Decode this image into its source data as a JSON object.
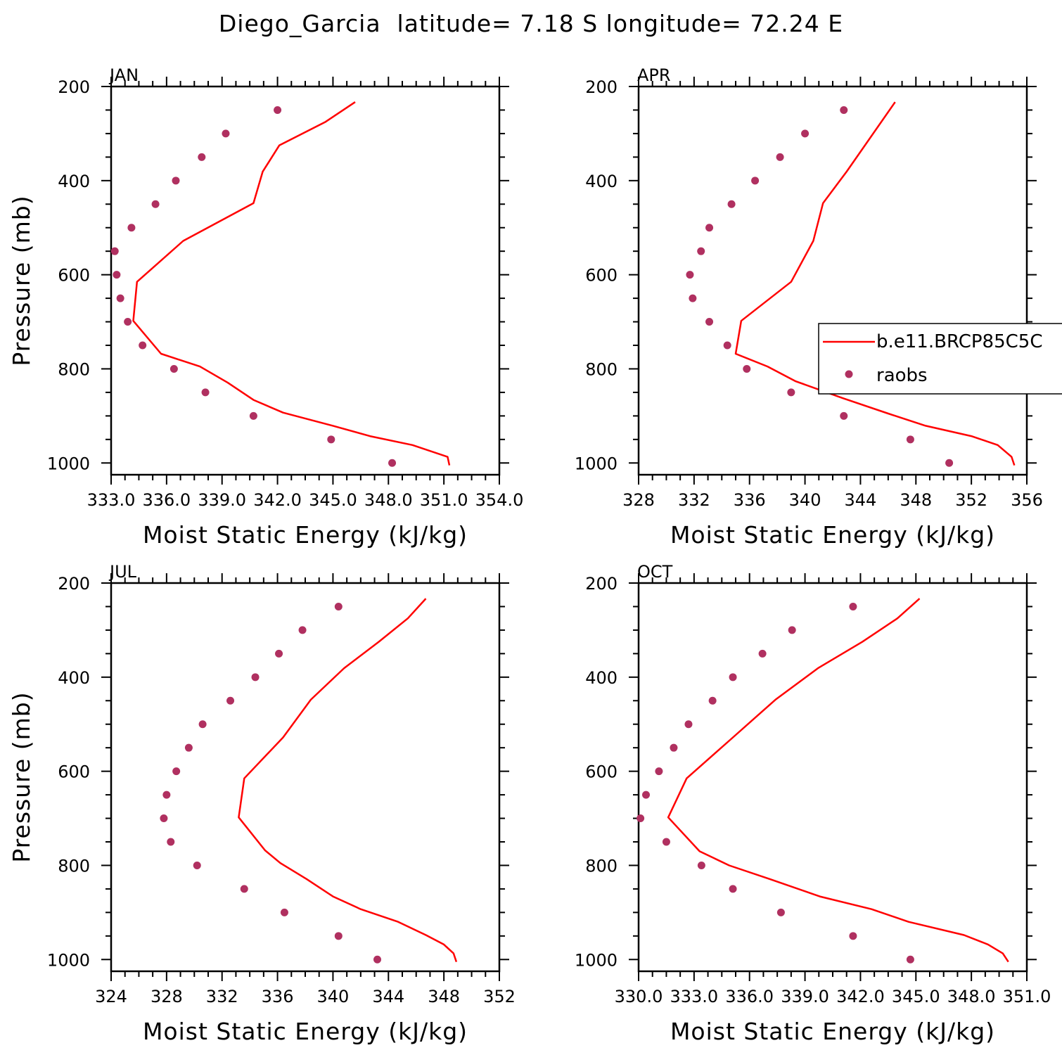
{
  "title": "Diego_Garcia  latitude= 7.18 S longitude= 72.24 E",
  "colors": {
    "model": "#ff0000",
    "raobs": "#b03060",
    "axis": "#000000"
  },
  "legend": {
    "placement": "right-middle of APR panel",
    "entries": [
      "b.e11.BRCP85C5C",
      "raobs"
    ]
  },
  "chart_data": [
    {
      "type": "line",
      "panel_label": "JAN",
      "xlabel": "Moist Static Energy (kJ/kg)",
      "ylabel": "Pressure (mb)",
      "xlim": [
        333.0,
        354.0
      ],
      "xticks": [
        333,
        336,
        339,
        342,
        345,
        348,
        351,
        354
      ],
      "xtick_labels": [
        "333.0",
        "336.0",
        "339.0",
        "342.0",
        "345.0",
        "348.0",
        "351.0",
        "354.0"
      ],
      "ylim": [
        1025,
        200
      ],
      "yticks": [
        200,
        400,
        600,
        800,
        1000
      ],
      "series": [
        {
          "name": "b.e11.BRCP85C5C",
          "kind": "line",
          "x": [
            351.3,
            351.2,
            349.3,
            347.0,
            345.0,
            342.3,
            340.7,
            339.3,
            337.8,
            335.7,
            334.2,
            334.4,
            336.9,
            340.7,
            341.2,
            342.1,
            344.6,
            346.2
          ],
          "y": [
            1005,
            987,
            962,
            943,
            921,
            893,
            866,
            829,
            795,
            768,
            698,
            615,
            528,
            448,
            381,
            325,
            275,
            233
          ]
        },
        {
          "name": "raobs",
          "kind": "points",
          "x": [
            348.2,
            344.9,
            340.7,
            338.1,
            336.4,
            334.7,
            333.9,
            333.5,
            333.3,
            333.2,
            334.1,
            335.4,
            336.5,
            337.9,
            339.2,
            342.0
          ],
          "y": [
            1000,
            950,
            900,
            850,
            800,
            750,
            700,
            650,
            600,
            550,
            500,
            450,
            400,
            350,
            300,
            250
          ]
        }
      ]
    },
    {
      "type": "line",
      "panel_label": "APR",
      "xlabel": "Moist Static Energy (kJ/kg)",
      "ylabel": "",
      "xlim": [
        328,
        356
      ],
      "xticks": [
        328,
        332,
        336,
        340,
        344,
        348,
        352,
        356
      ],
      "xtick_labels": [
        "328",
        "332",
        "336",
        "340",
        "344",
        "348",
        "352",
        "356"
      ],
      "ylim": [
        1025,
        200
      ],
      "yticks": [
        200,
        400,
        600,
        800,
        1000
      ],
      "series": [
        {
          "name": "b.e11.BRCP85C5C",
          "kind": "line",
          "x": [
            355.1,
            354.9,
            353.9,
            352.0,
            348.7,
            346.0,
            342.7,
            339.3,
            337.3,
            335.0,
            335.4,
            339.0,
            340.6,
            341.3,
            343.0,
            346.5
          ],
          "y": [
            1005,
            987,
            962,
            943,
            921,
            895,
            862,
            826,
            795,
            768,
            698,
            615,
            528,
            448,
            381,
            233
          ]
        },
        {
          "name": "raobs",
          "kind": "points",
          "x": [
            350.4,
            347.6,
            342.8,
            339.0,
            335.8,
            334.4,
            333.1,
            331.9,
            331.7,
            332.5,
            333.1,
            334.7,
            336.4,
            338.2,
            340.0,
            342.8
          ],
          "y": [
            1000,
            950,
            900,
            850,
            800,
            750,
            700,
            650,
            600,
            550,
            500,
            450,
            400,
            350,
            300,
            250
          ]
        }
      ]
    },
    {
      "type": "line",
      "panel_label": "JUL",
      "xlabel": "Moist Static Energy (kJ/kg)",
      "ylabel": "Pressure (mb)",
      "xlim": [
        324,
        352
      ],
      "xticks": [
        324,
        328,
        332,
        336,
        340,
        344,
        348,
        352
      ],
      "xtick_labels": [
        "324",
        "328",
        "332",
        "336",
        "340",
        "344",
        "348",
        "352"
      ],
      "ylim": [
        1025,
        200
      ],
      "yticks": [
        200,
        400,
        600,
        800,
        1000
      ],
      "series": [
        {
          "name": "b.e11.BRCP85C5C",
          "kind": "line",
          "x": [
            348.9,
            348.7,
            348.0,
            346.7,
            344.7,
            342.0,
            340.0,
            338.1,
            336.2,
            335.1,
            333.2,
            333.6,
            336.4,
            338.4,
            340.8,
            343.3,
            345.4,
            346.7
          ],
          "y": [
            1005,
            987,
            968,
            948,
            920,
            893,
            866,
            829,
            795,
            768,
            698,
            615,
            528,
            448,
            381,
            325,
            275,
            233
          ]
        },
        {
          "name": "raobs",
          "kind": "points",
          "x": [
            343.2,
            340.4,
            336.5,
            333.6,
            330.2,
            328.3,
            327.8,
            328.0,
            328.7,
            329.6,
            330.6,
            332.6,
            334.4,
            336.1,
            337.8,
            340.4
          ],
          "y": [
            1000,
            950,
            900,
            850,
            800,
            750,
            700,
            650,
            600,
            550,
            500,
            450,
            400,
            350,
            300,
            250
          ]
        }
      ]
    },
    {
      "type": "line",
      "panel_label": "OCT",
      "xlabel": "Moist Static Energy (kJ/kg)",
      "ylabel": "",
      "xlim": [
        330.0,
        351.0
      ],
      "xticks": [
        330,
        333,
        336,
        339,
        342,
        345,
        348,
        351
      ],
      "xtick_labels": [
        "330.0",
        "333.0",
        "336.0",
        "339.0",
        "342.0",
        "345.0",
        "348.0",
        "351.0"
      ],
      "ylim": [
        1025,
        200
      ],
      "yticks": [
        200,
        400,
        600,
        800,
        1000
      ],
      "series": [
        {
          "name": "b.e11.BRCP85C5C",
          "kind": "line",
          "x": [
            350.0,
            349.7,
            348.9,
            347.6,
            344.6,
            342.6,
            339.8,
            337.1,
            334.9,
            333.3,
            331.6,
            332.6,
            335.1,
            337.4,
            339.7,
            342.1,
            344.0,
            345.2
          ],
          "y": [
            1005,
            987,
            968,
            948,
            920,
            893,
            866,
            829,
            800,
            770,
            698,
            615,
            528,
            448,
            381,
            325,
            275,
            233
          ]
        },
        {
          "name": "raobs",
          "kind": "points",
          "x": [
            344.7,
            341.6,
            337.7,
            335.1,
            333.4,
            331.5,
            330.1,
            330.4,
            331.1,
            331.9,
            332.7,
            334.0,
            335.1,
            336.7,
            338.3,
            341.6
          ],
          "y": [
            1000,
            950,
            900,
            850,
            800,
            750,
            700,
            650,
            600,
            550,
            500,
            450,
            400,
            350,
            300,
            250
          ]
        }
      ]
    }
  ]
}
